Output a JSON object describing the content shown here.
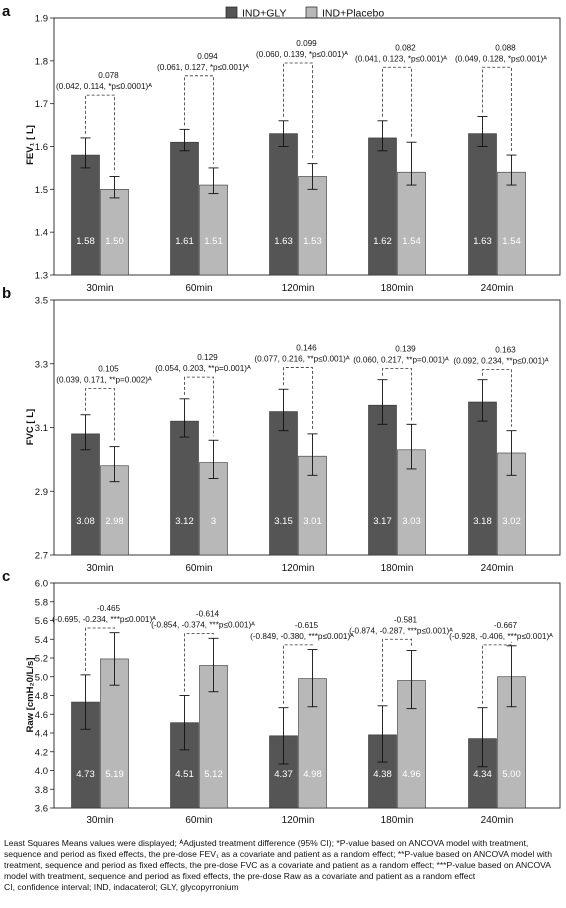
{
  "legend": [
    {
      "label": "IND+GLY",
      "color": "#555555"
    },
    {
      "label": "IND+Placebo",
      "color": "#b8b8b8"
    }
  ],
  "chart_data": [
    {
      "type": "bar",
      "panel_letter": "a",
      "ylabel": "FEV₁ [ L]",
      "ylim": [
        1.3,
        1.9
      ],
      "yticks": [
        "1.3",
        "1.4",
        "1.5",
        "1.6",
        "1.7",
        "1.8",
        "1.9"
      ],
      "categories": [
        "30min",
        "60min",
        "120min",
        "180min",
        "240min"
      ],
      "series": [
        {
          "name": "IND+GLY",
          "values": [
            1.58,
            1.61,
            1.63,
            1.62,
            1.63
          ],
          "err_low": [
            1.55,
            1.59,
            1.6,
            1.59,
            1.6
          ],
          "err_high": [
            1.62,
            1.64,
            1.66,
            1.66,
            1.67
          ],
          "labels": [
            "1.58",
            "1.61",
            "1.63",
            "1.62",
            "1.63"
          ]
        },
        {
          "name": "IND+Placebo",
          "values": [
            1.5,
            1.51,
            1.53,
            1.54,
            1.54
          ],
          "err_low": [
            1.48,
            1.49,
            1.5,
            1.51,
            1.51
          ],
          "err_high": [
            1.53,
            1.55,
            1.56,
            1.61,
            1.58
          ],
          "labels": [
            "1.50",
            "1.51",
            "1.53",
            "1.54",
            "1.54"
          ]
        }
      ],
      "annotations": [
        {
          "diff": "0.078",
          "ci": "(0.042, 0.114, *p≤0.0001)ᴬ",
          "bracket_y": 1.72
        },
        {
          "diff": "0.094",
          "ci": "(0.061, 0.127, *p≤0.001)ᴬ",
          "bracket_y": 1.765
        },
        {
          "diff": "0.099",
          "ci": "(0.060, 0.139, *p≤0.001)ᴬ",
          "bracket_y": 1.795
        },
        {
          "diff": "0.082",
          "ci": "(0.041, 0.123, *p≤0.001)ᴬ",
          "bracket_y": 1.785
        },
        {
          "diff": "0.088",
          "ci": "(0.049, 0.128, *p≤0.001)ᴬ",
          "bracket_y": 1.785
        }
      ]
    },
    {
      "type": "bar",
      "panel_letter": "b",
      "ylabel": "FVC [ L]",
      "ylim": [
        2.7,
        3.5
      ],
      "yticks": [
        "2.7",
        "2.9",
        "3.1",
        "3.3",
        "3.5"
      ],
      "categories": [
        "30min",
        "60min",
        "120min",
        "180min",
        "240min"
      ],
      "series": [
        {
          "name": "IND+GLY",
          "values": [
            3.08,
            3.12,
            3.15,
            3.17,
            3.18
          ],
          "err_low": [
            3.03,
            3.07,
            3.09,
            3.11,
            3.12
          ],
          "err_high": [
            3.14,
            3.19,
            3.22,
            3.25,
            3.25
          ],
          "labels": [
            "3.08",
            "3.12",
            "3.15",
            "3.17",
            "3.18"
          ]
        },
        {
          "name": "IND+Placebo",
          "values": [
            2.98,
            2.99,
            3.01,
            3.03,
            3.02
          ],
          "err_low": [
            2.93,
            2.94,
            2.95,
            2.97,
            2.95
          ],
          "err_high": [
            3.04,
            3.06,
            3.08,
            3.11,
            3.09
          ],
          "labels": [
            "2.98",
            "3",
            "3.01",
            "3.03",
            "3.02"
          ]
        }
      ],
      "annotations": [
        {
          "diff": "0.105",
          "ci": "(0.039, 0.171, **p=0.002)ᴬ",
          "bracket_y": 3.222
        },
        {
          "diff": "0.129",
          "ci": "(0.054, 0.203, **p=0.001)ᴬ",
          "bracket_y": 3.258
        },
        {
          "diff": "0.146",
          "ci": "(0.077, 0.216, **p≤0.001)ᴬ",
          "bracket_y": 3.288
        },
        {
          "diff": "0.139",
          "ci": "(0.060, 0.217, **p=0.001)ᴬ",
          "bracket_y": 3.285
        },
        {
          "diff": "0.163",
          "ci": "(0.092, 0.234, **p≤0.001)ᴬ",
          "bracket_y": 3.282
        }
      ]
    },
    {
      "type": "bar",
      "panel_letter": "c",
      "ylabel": "Raw [cmH₂0/L/s]",
      "ylim": [
        3.6,
        6.0
      ],
      "yticks": [
        "3.6",
        "3.8",
        "4.0",
        "4.2",
        "4.4",
        "4.6",
        "4.8",
        "5.0",
        "5.2",
        "5.4",
        "5.6",
        "5.8",
        "6.0"
      ],
      "categories": [
        "30min",
        "60min",
        "120min",
        "180min",
        "240min"
      ],
      "series": [
        {
          "name": "IND+GLY",
          "values": [
            4.73,
            4.51,
            4.37,
            4.38,
            4.34
          ],
          "err_low": [
            4.44,
            4.22,
            4.07,
            4.09,
            4.04
          ],
          "err_high": [
            5.02,
            4.8,
            4.67,
            4.69,
            4.67
          ],
          "labels": [
            "4.73",
            "4.51",
            "4.37",
            "4.38",
            "4.34"
          ]
        },
        {
          "name": "IND+Placebo",
          "values": [
            5.19,
            5.12,
            4.98,
            4.96,
            5.0
          ],
          "err_low": [
            4.91,
            4.84,
            4.68,
            4.66,
            4.68
          ],
          "err_high": [
            5.47,
            5.41,
            5.29,
            5.28,
            5.33
          ],
          "labels": [
            "5.19",
            "5.12",
            "4.98",
            "4.96",
            "5.00"
          ]
        }
      ],
      "annotations": [
        {
          "diff": "-0.465",
          "ci": "(-0.695, -0.234, ***p≤0.001)ᴬ",
          "bracket_y": 5.52
        },
        {
          "diff": "-0.614",
          "ci": "(-0.854, -0.374, ***p≤0.001)ᴬ",
          "bracket_y": 5.46
        },
        {
          "diff": "-0.615",
          "ci": "(-0.849, -0.380, ***p≤0.001)ᴬ",
          "bracket_y": 5.34
        },
        {
          "diff": "-0.581",
          "ci": "(-0.874, -0.287, ***p≤0.001)ᴬ",
          "bracket_y": 5.4
        },
        {
          "diff": "-0.667",
          "ci": "(-0.928, -0.406, ***p≤0.001)ᴬ",
          "bracket_y": 5.34
        }
      ]
    }
  ],
  "footnote": [
    "Least Squares Means values were displayed; ᴬAdjusted treatment difference (95% CI); *P-value based on ANCOVA model with treatment,",
    "sequence and period as fixed effects, the pre-dose FEV₁ as a covariate and patient as a random effect; **P-value based on ANCOVA model with",
    "treatment, sequence and period as fixed effects, the pre-dose FVC as a covariate and patient as a random effect; ***P-value based on ANCOVA",
    "model with treatment, sequence and period as fixed effects, the pre-dose Raw as a covariate and patient as a random effect",
    "CI, confidence interval; IND, indacaterol; GLY, glycopyrronium"
  ]
}
